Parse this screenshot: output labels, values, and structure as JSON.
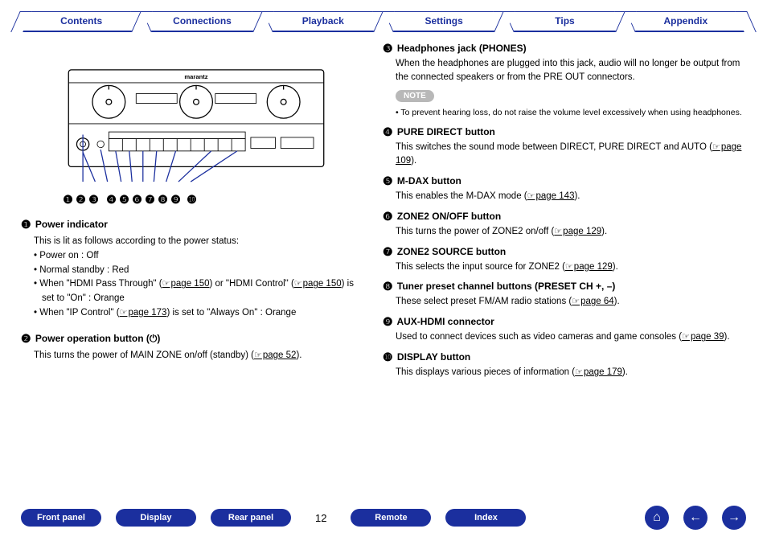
{
  "colors": {
    "brand": "#1b2f9e",
    "note_badge_bg": "#b8b8b8"
  },
  "tabs": [
    "Contents",
    "Connections",
    "Playback",
    "Settings",
    "Tips",
    "Appendix"
  ],
  "device_brand": "marantz",
  "callout_labels": [
    "❶",
    "❷",
    "❸",
    "❹",
    "❺",
    "❻",
    "❼",
    "❽",
    "❾",
    "❿"
  ],
  "left_items": [
    {
      "num": "❶",
      "title": "Power indicator",
      "lines": [
        {
          "t": "plain",
          "text": "This is lit as follows according to the power status:"
        },
        {
          "t": "bullet",
          "text": "Power on : Off"
        },
        {
          "t": "bullet",
          "text": "Normal standby : Red"
        },
        {
          "t": "bullet",
          "parts": [
            {
              "text": "When \"HDMI Pass Through\" ("
            },
            {
              "link": "page 150",
              "ptr": true
            },
            {
              "text": ") or \"HDMI Control\" ("
            },
            {
              "link": "page 150",
              "ptr": true
            },
            {
              "text": ") is set to \"On\" : Orange"
            }
          ]
        },
        {
          "t": "bullet",
          "parts": [
            {
              "text": "When \"IP Control\" ("
            },
            {
              "link": "page 173",
              "ptr": true
            },
            {
              "text": ") is set to \"Always On\" : Orange"
            }
          ]
        }
      ]
    },
    {
      "num": "❷",
      "title": "Power operation button (",
      "title_suffix": ")",
      "power_icon": true,
      "lines": [
        {
          "t": "plain",
          "parts": [
            {
              "text": "This turns the power of MAIN ZONE on/off (standby) ("
            },
            {
              "link": "page 52",
              "ptr": true
            },
            {
              "text": ")."
            }
          ]
        }
      ]
    }
  ],
  "right_items": [
    {
      "num": "❸",
      "title": "Headphones jack (PHONES)",
      "body": "When the headphones are plugged into this jack, audio will no longer be output from the connected speakers or from the PRE OUT connectors.",
      "note": {
        "label": "NOTE",
        "text": "To prevent hearing loss, do not raise the volume level excessively when using headphones."
      }
    },
    {
      "num": "❹",
      "title": "PURE DIRECT button",
      "body_parts": [
        {
          "text": "This switches the sound mode between DIRECT, PURE DIRECT and AUTO ("
        },
        {
          "link": "page 109",
          "ptr": true
        },
        {
          "text": ")."
        }
      ]
    },
    {
      "num": "❺",
      "title": "M-DAX button",
      "body_parts": [
        {
          "text": "This enables the M-DAX mode ("
        },
        {
          "link": "page 143",
          "ptr": true
        },
        {
          "text": ")."
        }
      ]
    },
    {
      "num": "❻",
      "title": "ZONE2 ON/OFF button",
      "body_parts": [
        {
          "text": "This turns the power of ZONE2 on/off ("
        },
        {
          "link": "page 129",
          "ptr": true
        },
        {
          "text": ")."
        }
      ]
    },
    {
      "num": "❼",
      "title": "ZONE2 SOURCE button",
      "body_parts": [
        {
          "text": "This selects the input source for ZONE2 ("
        },
        {
          "link": "page 129",
          "ptr": true
        },
        {
          "text": ")."
        }
      ]
    },
    {
      "num": "❽",
      "title": "Tuner preset channel buttons (PRESET CH +, –)",
      "body_parts": [
        {
          "text": "These select preset FM/AM radio stations ("
        },
        {
          "link": "page 64",
          "ptr": true
        },
        {
          "text": ")."
        }
      ]
    },
    {
      "num": "❾",
      "title": "AUX-HDMI connector",
      "body_parts": [
        {
          "text": "Used to connect devices such as video cameras and game consoles ("
        },
        {
          "link": "page 39",
          "ptr": true
        },
        {
          "text": ")."
        }
      ]
    },
    {
      "num": "❿",
      "title": "DISPLAY button",
      "body_parts": [
        {
          "text": "This displays various pieces of information ("
        },
        {
          "link": "page 179",
          "ptr": true
        },
        {
          "text": ")."
        }
      ]
    }
  ],
  "bottom_pills": [
    "Front panel",
    "Display",
    "Rear panel"
  ],
  "page_number": "12",
  "bottom_pills_right": [
    "Remote",
    "Index"
  ],
  "nav_icons": {
    "home": "⌂",
    "prev": "←",
    "next": "→"
  }
}
